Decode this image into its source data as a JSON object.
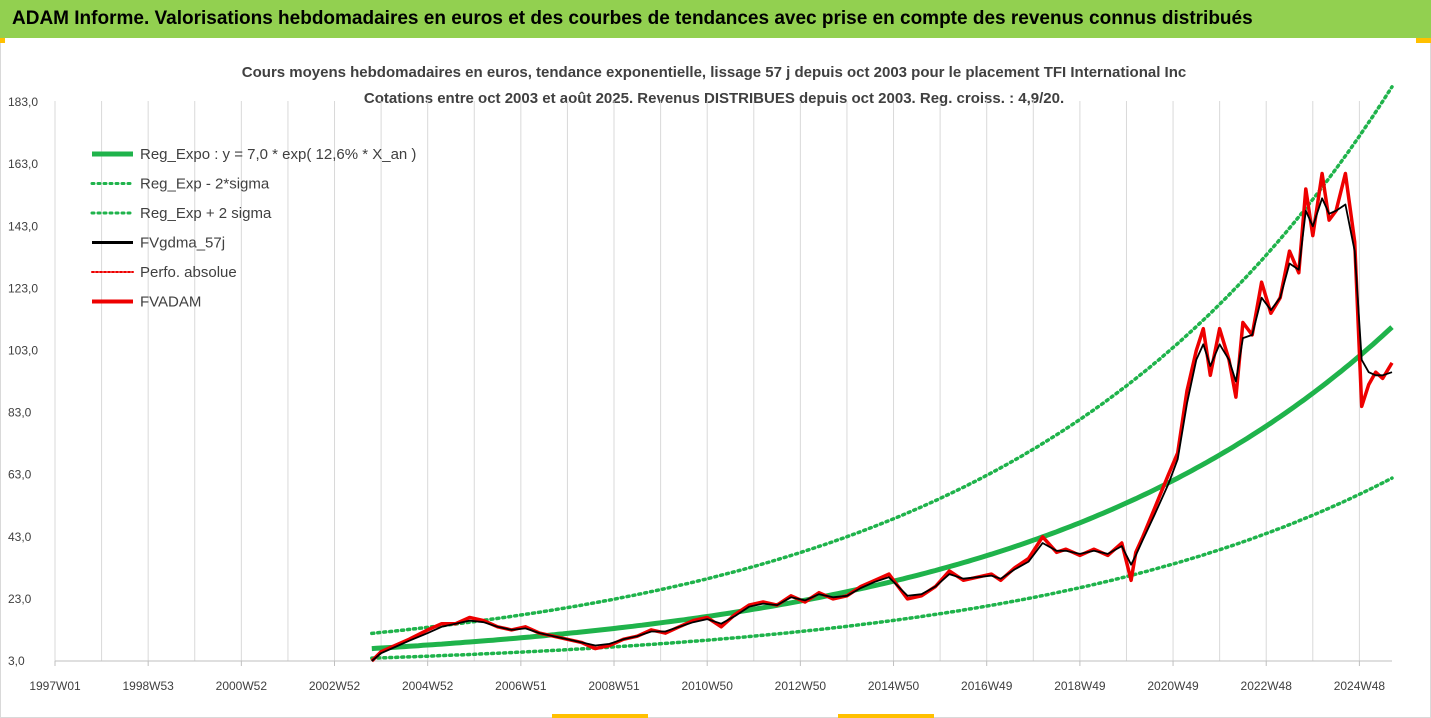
{
  "banner": {
    "title": "ADAM Informe. Valorisations hebdomadaires en euros et des courbes de tendances avec prise en compte des revenus connus distribués"
  },
  "colors": {
    "banner_bg": "#92d050",
    "trend": "#1fb34b",
    "black": "#000000",
    "red": "#ee0000",
    "grid": "#d9d9d9",
    "accent": "#ffc000"
  },
  "chart_data": {
    "type": "line",
    "title": "Cours moyens hebdomadaires en euros, tendance exponentielle, lissage 57 j depuis oct 2003 pour le placement TFI International Inc",
    "subtitle": "Cotations entre oct 2003 et août 2025. Revenus DISTRIBUES depuis oct 2003. Reg. croiss. : 4,9/20.",
    "xlabel": "",
    "ylabel": "",
    "ylim": [
      3.0,
      193.0
    ],
    "yticks": [
      "3,0",
      "23,0",
      "43,0",
      "63,0",
      "83,0",
      "103,0",
      "123,0",
      "143,0",
      "163,0",
      "183,0"
    ],
    "xlim": [
      1997.0,
      2025.7
    ],
    "xticks": [
      {
        "label": "1997W01",
        "x": 1997.0
      },
      {
        "label": "1998W53",
        "x": 1999.0
      },
      {
        "label": "2000W52",
        "x": 2001.0
      },
      {
        "label": "2002W52",
        "x": 2003.0
      },
      {
        "label": "2004W52",
        "x": 2005.0
      },
      {
        "label": "2006W51",
        "x": 2007.0
      },
      {
        "label": "2008W51",
        "x": 2009.0
      },
      {
        "label": "2010W50",
        "x": 2011.0
      },
      {
        "label": "2012W50",
        "x": 2013.0
      },
      {
        "label": "2014W50",
        "x": 2015.0
      },
      {
        "label": "2016W49",
        "x": 2017.0
      },
      {
        "label": "2018W49",
        "x": 2019.0
      },
      {
        "label": "2020W49",
        "x": 2021.0
      },
      {
        "label": "2022W48",
        "x": 2023.0
      },
      {
        "label": "2024W48",
        "x": 2025.0
      }
    ],
    "grid": "vertical",
    "legend_position": "top-left",
    "legend": [
      {
        "label": "Reg_Expo : y = 7,0 * exp( 12,6% *  X_an )",
        "style": "solid-thick",
        "color": "#1fb34b"
      },
      {
        "label": "Reg_Exp - 2*sigma",
        "style": "dotted",
        "color": "#1fb34b"
      },
      {
        "label": "Reg_Exp + 2 sigma",
        "style": "dotted",
        "color": "#1fb34b"
      },
      {
        "label": "FVgdma_57j",
        "style": "solid",
        "color": "#000000"
      },
      {
        "label": "Perfo. absolue",
        "style": "dotted",
        "color": "#ee0000"
      },
      {
        "label": "FVADAM",
        "style": "solid-thick",
        "color": "#ee0000"
      }
    ],
    "trend": {
      "a": 7.0,
      "rate": 0.126,
      "x0": 2003.8,
      "x_end": 2025.7,
      "lower_factor": 0.56,
      "upper_factor": 1.7
    },
    "series": [
      {
        "name": "FVADAM",
        "x": [
          2003.8,
          2004.0,
          2004.3,
          2004.6,
          2005.0,
          2005.3,
          2005.6,
          2005.9,
          2006.2,
          2006.5,
          2006.8,
          2007.1,
          2007.4,
          2007.7,
          2008.0,
          2008.3,
          2008.6,
          2008.9,
          2009.2,
          2009.5,
          2009.8,
          2010.1,
          2010.4,
          2010.7,
          2011.0,
          2011.3,
          2011.6,
          2011.9,
          2012.2,
          2012.5,
          2012.8,
          2013.1,
          2013.4,
          2013.7,
          2014.0,
          2014.3,
          2014.6,
          2014.9,
          2015.1,
          2015.3,
          2015.6,
          2015.9,
          2016.2,
          2016.5,
          2016.8,
          2017.1,
          2017.3,
          2017.6,
          2017.9,
          2018.2,
          2018.5,
          2018.7,
          2019.0,
          2019.3,
          2019.6,
          2019.9,
          2020.1,
          2020.2,
          2020.35,
          2020.6,
          2020.9,
          2021.1,
          2021.3,
          2021.5,
          2021.65,
          2021.8,
          2022.0,
          2022.2,
          2022.35,
          2022.5,
          2022.7,
          2022.9,
          2023.1,
          2023.3,
          2023.5,
          2023.7,
          2023.85,
          2024.0,
          2024.2,
          2024.35,
          2024.5,
          2024.7,
          2024.9,
          2025.05,
          2025.2,
          2025.35,
          2025.5,
          2025.7
        ],
        "values": [
          3,
          6,
          8,
          10,
          13,
          15,
          15,
          17,
          16,
          14,
          13,
          14,
          12,
          11,
          10,
          9,
          7,
          8,
          10,
          11,
          13,
          12,
          14,
          16,
          17,
          14,
          18,
          21,
          22,
          21,
          24,
          22,
          25,
          23,
          24,
          27,
          29,
          31,
          27,
          23,
          24,
          27,
          32,
          29,
          30,
          31,
          29,
          33,
          36,
          43,
          38,
          39,
          37,
          39,
          37,
          41,
          29,
          38,
          43,
          52,
          63,
          70,
          90,
          103,
          110,
          95,
          110,
          100,
          88,
          112,
          108,
          125,
          115,
          120,
          135,
          128,
          155,
          140,
          160,
          145,
          148,
          160,
          138,
          85,
          92,
          96,
          94,
          99
        ]
      },
      {
        "name": "FVgdma_57j",
        "x": [
          2003.8,
          2004.0,
          2004.3,
          2004.6,
          2005.0,
          2005.3,
          2005.6,
          2005.9,
          2006.2,
          2006.5,
          2006.8,
          2007.1,
          2007.4,
          2007.7,
          2008.0,
          2008.3,
          2008.6,
          2008.9,
          2009.2,
          2009.5,
          2009.8,
          2010.1,
          2010.4,
          2010.7,
          2011.0,
          2011.3,
          2011.6,
          2011.9,
          2012.2,
          2012.5,
          2012.8,
          2013.1,
          2013.4,
          2013.7,
          2014.0,
          2014.3,
          2014.6,
          2014.9,
          2015.1,
          2015.3,
          2015.6,
          2015.9,
          2016.2,
          2016.5,
          2016.8,
          2017.1,
          2017.3,
          2017.6,
          2017.9,
          2018.2,
          2018.5,
          2018.7,
          2019.0,
          2019.3,
          2019.6,
          2019.9,
          2020.1,
          2020.2,
          2020.35,
          2020.6,
          2020.9,
          2021.1,
          2021.3,
          2021.5,
          2021.65,
          2021.8,
          2022.0,
          2022.2,
          2022.35,
          2022.5,
          2022.7,
          2022.9,
          2023.1,
          2023.3,
          2023.5,
          2023.7,
          2023.85,
          2024.0,
          2024.2,
          2024.35,
          2024.5,
          2024.7,
          2024.9,
          2025.05,
          2025.2,
          2025.35,
          2025.5,
          2025.7
        ],
        "values": [
          3,
          5.5,
          7.5,
          9.5,
          12,
          14,
          15,
          16,
          15.5,
          14,
          13,
          13.5,
          12,
          11,
          10,
          9,
          8,
          8.5,
          10,
          11,
          12.5,
          12.5,
          14,
          15.5,
          16.5,
          15,
          17.5,
          20.5,
          21.5,
          21,
          23.5,
          22.5,
          24.5,
          23.5,
          24,
          26.5,
          28.5,
          30,
          27,
          24,
          24.5,
          27,
          31,
          29.5,
          30,
          30.5,
          29.5,
          32.5,
          35,
          41,
          38.5,
          38.5,
          37.5,
          38.5,
          37.5,
          40,
          34,
          37,
          42,
          50,
          60,
          68,
          86,
          100,
          105,
          98,
          105,
          100,
          93,
          107,
          108,
          120,
          116,
          120,
          131,
          129,
          148,
          143,
          152,
          147,
          148,
          150,
          135,
          100,
          96,
          95,
          95,
          96
        ]
      }
    ]
  }
}
